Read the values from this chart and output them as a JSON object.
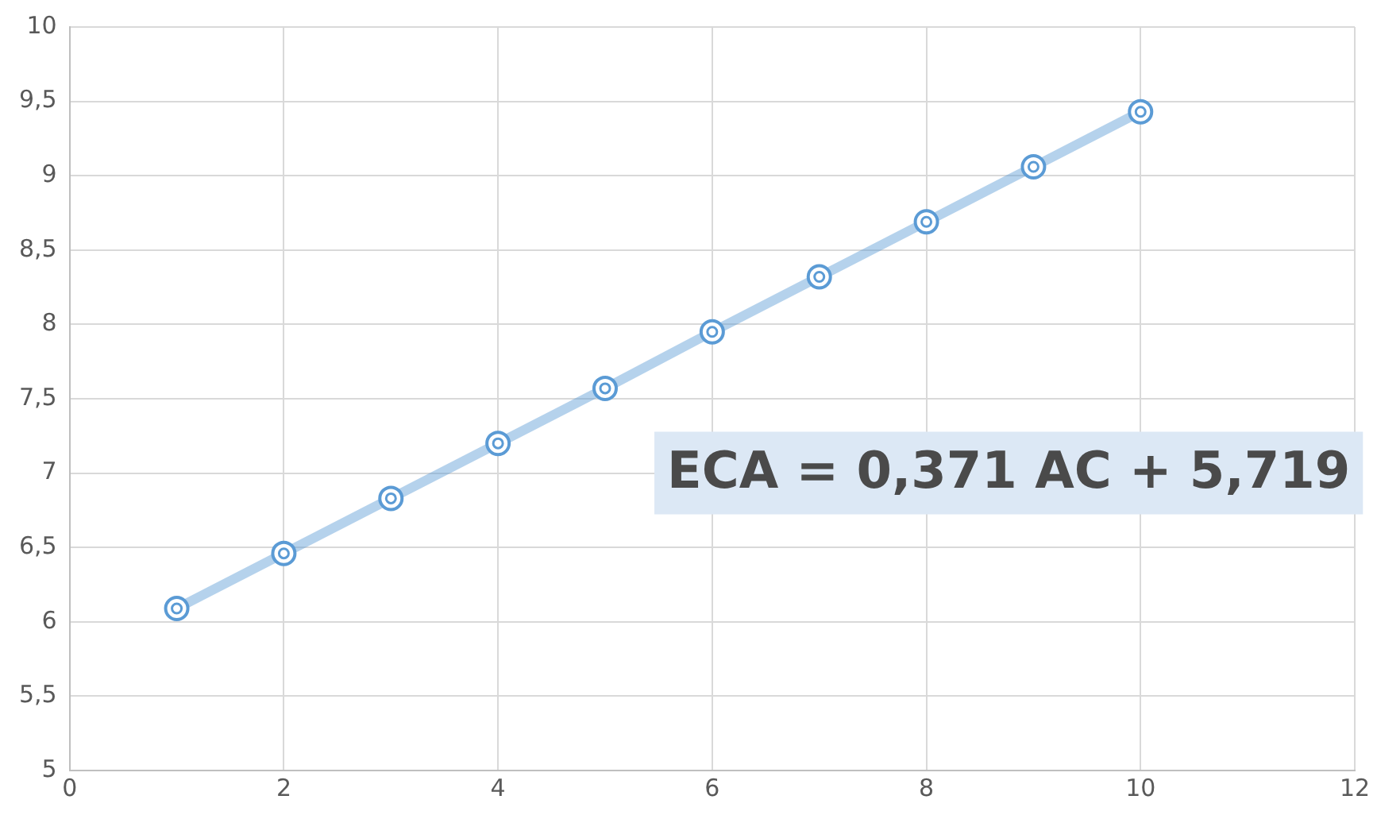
{
  "chart_data": {
    "type": "line",
    "x": [
      1,
      2,
      3,
      4,
      5,
      6,
      7,
      8,
      9,
      10
    ],
    "series": [
      {
        "color": "#5b9bd5",
        "values": [
          6.09,
          6.46,
          6.83,
          7.2,
          7.57,
          7.95,
          8.32,
          8.69,
          9.06,
          9.43
        ]
      }
    ],
    "xlim": [
      0,
      12
    ],
    "xticks": [
      0,
      2,
      4,
      6,
      8,
      10,
      12
    ],
    "ylim": [
      5,
      10
    ],
    "yticks": [
      5,
      {
        "value": 5.5,
        "label": "5,5"
      },
      6,
      {
        "value": 6.5,
        "label": "6,5"
      },
      7,
      {
        "value": 7.5,
        "label": "7,5"
      },
      8,
      {
        "value": 8.5,
        "label": "8,5"
      },
      9,
      {
        "value": 9.5,
        "label": "9,5"
      },
      10
    ],
    "grid": true,
    "legend": false,
    "marker": "circle",
    "line_style": "solid",
    "annotations": [
      "ECA = 0,371 AC + 5,719"
    ]
  }
}
